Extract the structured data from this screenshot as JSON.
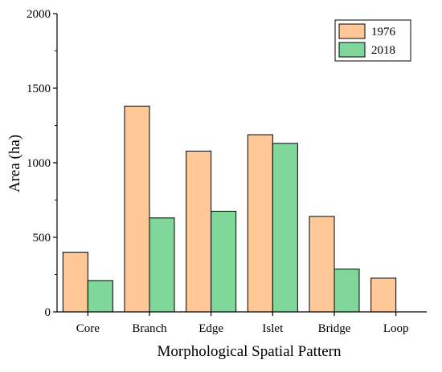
{
  "chart_data": {
    "type": "bar",
    "categories": [
      "Core",
      "Branch",
      "Edge",
      "Islet",
      "Bridge",
      "Loop"
    ],
    "series": [
      {
        "name": "1976",
        "values": [
          400,
          1380,
          1078,
          1188,
          640,
          226
        ],
        "color": "#ffc896"
      },
      {
        "name": "2018",
        "values": [
          210,
          630,
          675,
          1130,
          287,
          0
        ],
        "color": "#7fd89a"
      }
    ],
    "xlabel": "Morphological Spatial Pattern",
    "ylabel": "Area (ha)",
    "ylim": [
      0,
      2000
    ],
    "yticks": [
      0,
      500,
      1000,
      1500,
      2000
    ],
    "legend_position": "top-right",
    "grid": false
  }
}
